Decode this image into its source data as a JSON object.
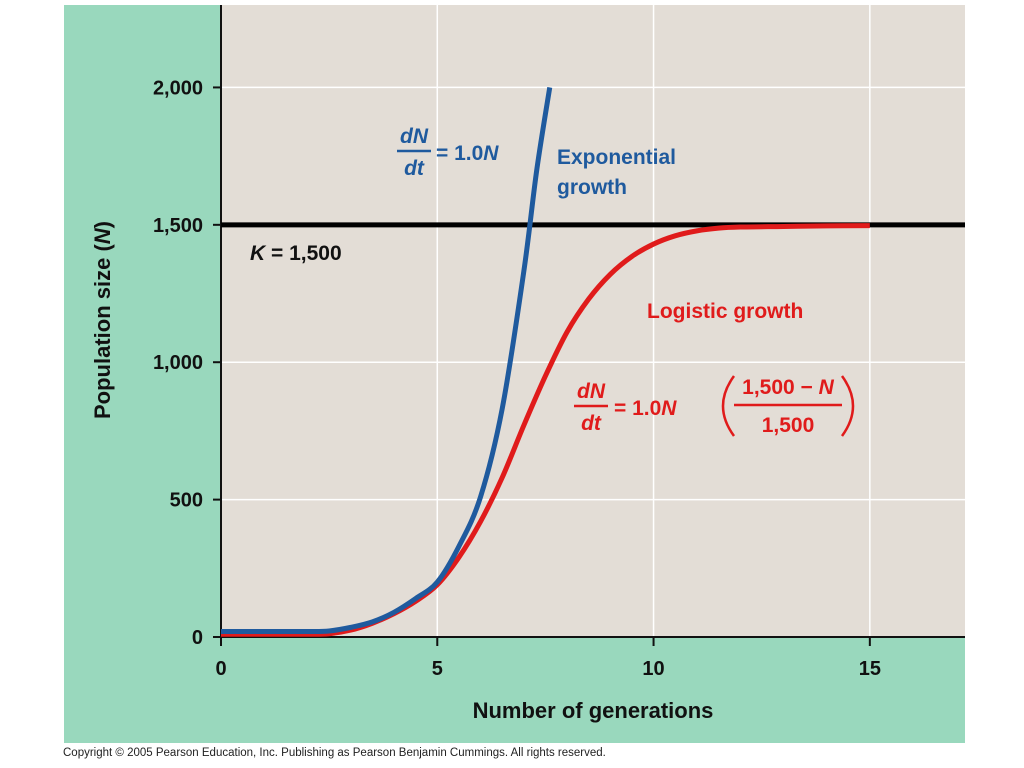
{
  "chart_data": {
    "type": "line",
    "xlabel": "Number of generations",
    "ylabel_main": "Population size (",
    "ylabel_var": "N",
    "ylabel_close": ")",
    "xlim": [
      0,
      17.2
    ],
    "ylim": [
      0,
      2300
    ],
    "xticks": [
      0,
      5,
      10,
      15
    ],
    "yticks": [
      0,
      500,
      1000,
      1500,
      2000
    ],
    "xtick_labels": [
      "0",
      "5",
      "10",
      "15"
    ],
    "ytick_labels": [
      "0",
      "500",
      "1,000",
      "1,500",
      "2,000"
    ],
    "grid": true,
    "colors": {
      "panel_bg": "#99d8bd",
      "plot_bg": "#e3ddd6",
      "grid": "#ffffff",
      "exponential": "#1f5a9e",
      "logistic": "#e01b1b",
      "carrying_capacity": "#000000"
    },
    "carrying_capacity": 1500,
    "series": [
      {
        "name": "Exponential growth",
        "x": [
          0,
          1,
          2,
          2.5,
          3,
          3.5,
          4,
          4.5,
          5,
          5.5,
          6,
          6.5,
          7,
          7.3,
          7.6
        ],
        "y": [
          20,
          20,
          20,
          22,
          35,
          55,
          90,
          140,
          200,
          330,
          510,
          830,
          1330,
          1700,
          2000
        ]
      },
      {
        "name": "Logistic growth",
        "x": [
          0,
          1,
          2,
          2.5,
          3,
          3.5,
          4,
          4.5,
          5,
          5.5,
          6,
          6.5,
          7,
          7.5,
          8,
          8.5,
          9,
          9.5,
          10,
          10.5,
          11,
          11.5,
          12,
          13,
          14,
          15
        ],
        "y": [
          10,
          10,
          10,
          12,
          25,
          50,
          85,
          130,
          190,
          290,
          420,
          580,
          770,
          950,
          1110,
          1230,
          1320,
          1385,
          1430,
          1460,
          1478,
          1488,
          1492,
          1494,
          1496,
          1497
        ]
      }
    ]
  },
  "labels": {
    "k_var": "K",
    "k_text": " = 1,500",
    "exp_label_1": "Exponential",
    "exp_label_2": "growth",
    "log_label": "Logistic growth",
    "dN": "dN",
    "dt": "dt",
    "exp_rhs": "= 1.0",
    "N": "N",
    "log_rhs": "= 1.0",
    "frac_num_a": "1,500 − ",
    "frac_num_b": "N",
    "frac_den": "1,500"
  },
  "copyright": "Copyright ©  2005 Pearson Education, Inc. Publishing as Pearson Benjamin Cummings. All rights reserved."
}
